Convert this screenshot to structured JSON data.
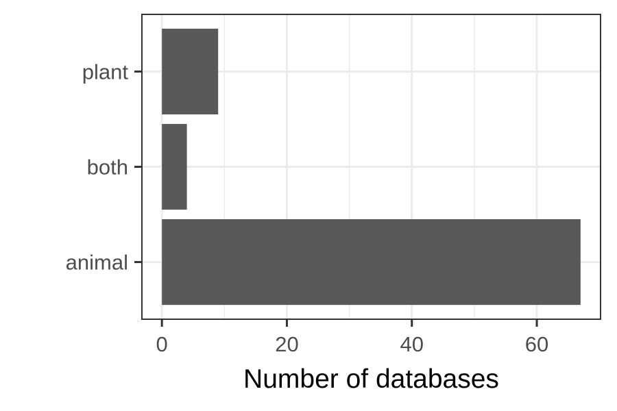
{
  "chart_data": {
    "type": "bar",
    "orientation": "horizontal",
    "categories": [
      "animal",
      "both",
      "plant"
    ],
    "values": [
      67,
      4,
      9
    ],
    "title": "",
    "xlabel": "Number of databases",
    "ylabel": "",
    "xlim": [
      -3.2,
      70.2
    ],
    "xticks": [
      0,
      20,
      40,
      60
    ],
    "xtick_labels": [
      "0",
      "20",
      "40",
      "60"
    ],
    "grid": true,
    "bar_color": "#595959",
    "theme": "bw"
  }
}
